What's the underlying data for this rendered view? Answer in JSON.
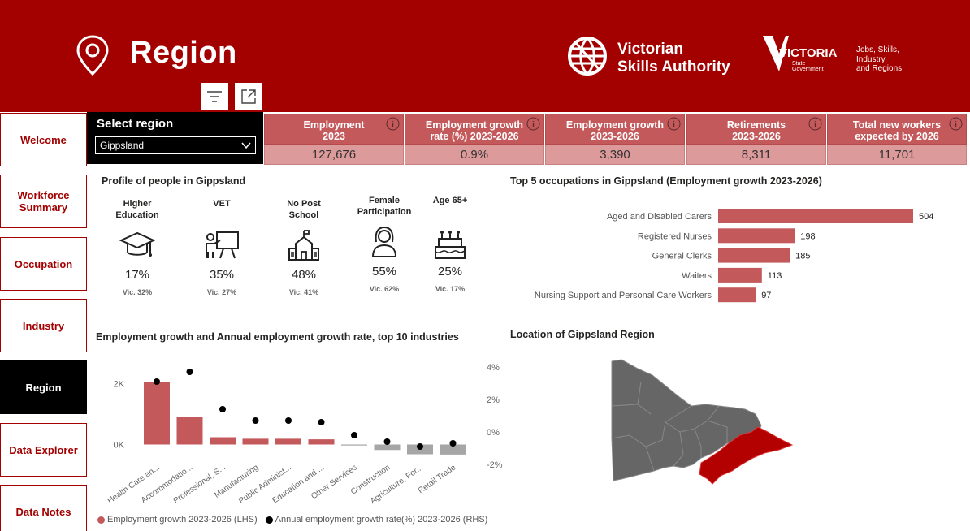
{
  "header": {
    "title": "Region",
    "vsa_line1": "Victorian",
    "vsa_line2": "Skills Authority",
    "vic_wordmark": "VICTORIA",
    "vic_sub1": "State",
    "vic_sub2": "Government",
    "dept_lines": [
      "Jobs, Skills,",
      "Industry",
      "and Regions"
    ]
  },
  "nav": [
    "Welcome",
    "Workforce Summary",
    "Occupation",
    "Industry",
    "Region",
    "Data Explorer",
    "Data Notes"
  ],
  "nav_active": "Region",
  "select": {
    "label": "Select region",
    "value": "Gippsland"
  },
  "kpis": [
    {
      "title_1": "Employment",
      "title_2": "2023",
      "value": "127,676"
    },
    {
      "title_1": "Employment growth",
      "title_2": "rate (%) 2023-2026",
      "value": "0.9%"
    },
    {
      "title_1": "Employment growth",
      "title_2": "2023-2026",
      "value": "3,390"
    },
    {
      "title_1": "Retirements",
      "title_2": "2023-2026",
      "value": "8,311"
    },
    {
      "title_1": "Total new workers",
      "title_2": "expected by 2026",
      "value": "11,701"
    }
  ],
  "profile": {
    "title": "Profile of people in Gippsland",
    "items": [
      {
        "label_1": "Higher",
        "label_2": "Education",
        "pct": "17%",
        "vic": "Vic. 32%",
        "icon": "graduation-cap-icon"
      },
      {
        "label_1": "VET",
        "label_2": "",
        "pct": "35%",
        "vic": "Vic. 27%",
        "icon": "teacher-board-icon"
      },
      {
        "label_1": "No Post",
        "label_2": "School",
        "pct": "48%",
        "vic": "Vic. 41%",
        "icon": "school-building-icon"
      },
      {
        "label_1": "Female",
        "label_2": "Participation",
        "pct": "55%",
        "vic": "Vic. 62%",
        "icon": "woman-icon"
      },
      {
        "label_1": "Age 65+",
        "label_2": "",
        "pct": "25%",
        "vic": "Vic. 17%",
        "icon": "birthday-cake-icon"
      }
    ]
  },
  "occupations": {
    "title": "Top 5 occupations in Gippsland (Employment growth 2023-2026)"
  },
  "industries": {
    "title": "Employment growth and Annual employment growth rate, top 10 industries",
    "legend_bar": "Employment growth 2023-2026 (LHS)",
    "legend_dot": "Annual employment growth rate(%) 2023-2026 (RHS)"
  },
  "map": {
    "title": "Location of Gippsland Region"
  },
  "colors": {
    "brand": "#a30000",
    "bar": "#c4595c",
    "bar_negative": "#a6a6a6",
    "map_grey": "#666666",
    "map_highlight": "#b30000"
  },
  "chart_data": [
    {
      "type": "bar",
      "title": "Top 5 occupations in Gippsland (Employment growth 2023-2026)",
      "orientation": "horizontal",
      "categories": [
        "Aged and Disabled Carers",
        "Registered Nurses",
        "General Clerks",
        "Waiters",
        "Nursing Support and Personal Care Workers"
      ],
      "values": [
        504,
        198,
        185,
        113,
        97
      ],
      "xlim": [
        0,
        504
      ]
    },
    {
      "type": "bar",
      "title": "Employment growth and Annual employment growth rate, top 10 industries",
      "categories": [
        "Health Care an...",
        "Accommodatio...",
        "Professional, S...",
        "Manufacturing",
        "Public Administ...",
        "Education and ...",
        "Other Services",
        "Construction",
        "Agriculture, For...",
        "Retail Trade"
      ],
      "series": [
        {
          "name": "Employment growth 2023-2026 (LHS)",
          "type": "bar",
          "axis": "left",
          "values": [
            2050,
            900,
            240,
            190,
            190,
            170,
            -20,
            -180,
            -320,
            -330
          ]
        },
        {
          "name": "Annual employment growth rate(%) 2023-2026 (RHS)",
          "type": "scatter",
          "axis": "right",
          "values": [
            3.1,
            3.7,
            1.4,
            0.7,
            0.7,
            0.6,
            -0.2,
            -0.6,
            -0.9,
            -0.7
          ]
        }
      ],
      "left_ticks": [
        "2K",
        "0K"
      ],
      "right_ticks": [
        "4%",
        "2%",
        "0%",
        "-2%"
      ],
      "ylim_left": [
        -1000,
        3000
      ],
      "ylim_right": [
        -2,
        4
      ]
    }
  ]
}
